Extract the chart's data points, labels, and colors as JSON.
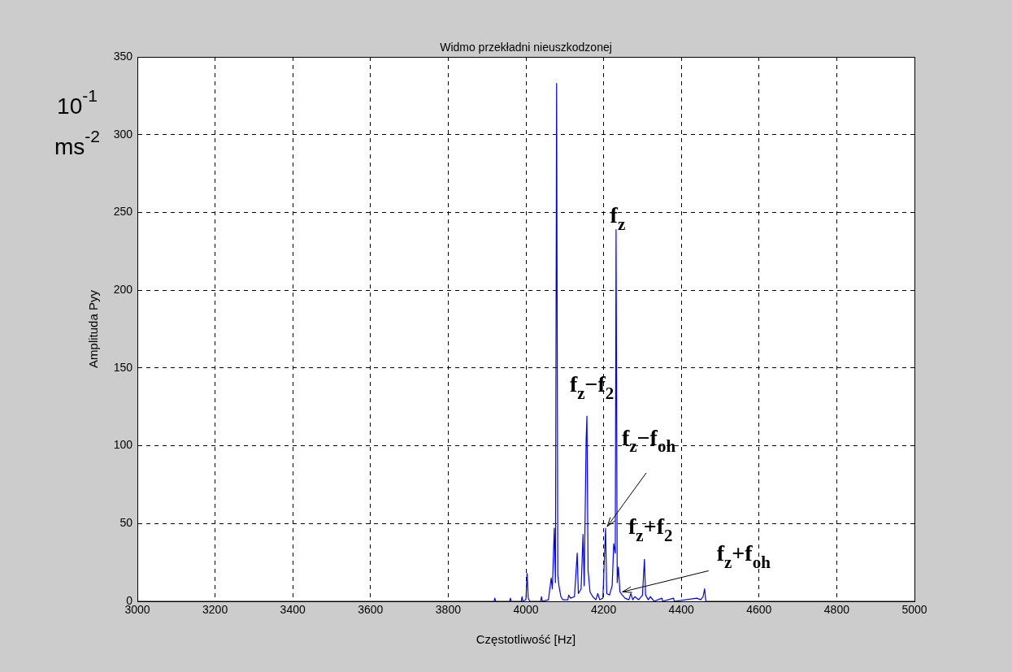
{
  "chart_data": {
    "type": "line",
    "title": "Widmo przekładni nieuszkodzonej",
    "xlabel": "Częstotliwość [Hz]",
    "ylabel": "Amplituda Pyy",
    "x": [
      3000,
      3918,
      3920,
      3922,
      3958,
      3960,
      3962,
      3988,
      3990,
      3992,
      4000,
      4003,
      4006,
      4010,
      4038,
      4040,
      4042,
      4058,
      4065,
      4068,
      4073,
      4076,
      4079,
      4082,
      4085,
      4090,
      4095,
      4108,
      4110,
      4115,
      4125,
      4132,
      4135,
      4142,
      4147,
      4150,
      4155,
      4157,
      4160,
      4165,
      4172,
      4180,
      4185,
      4190,
      4198,
      4205,
      4208,
      4215,
      4222,
      4226,
      4230,
      4232,
      4235,
      4238,
      4242,
      4248,
      4255,
      4265,
      4270,
      4275,
      4280,
      4290,
      4300,
      4305,
      4308,
      4315,
      4320,
      4330,
      4350,
      4352,
      4380,
      4382,
      4440,
      4450,
      4456,
      4460,
      4463,
      5000
    ],
    "series": [
      {
        "color": "#0000ff",
        "values": [
          0,
          0,
          2,
          0,
          0,
          2,
          0,
          0,
          3,
          0,
          1,
          18,
          2,
          0,
          0,
          3,
          0,
          1,
          15,
          8,
          47,
          12,
          333,
          17,
          10,
          3,
          1,
          1,
          4,
          2,
          3,
          31,
          5,
          8,
          43,
          10,
          104,
          119,
          20,
          6,
          3,
          1,
          5,
          1,
          2,
          47,
          5,
          4,
          10,
          37,
          31,
          239,
          12,
          22,
          6,
          4,
          2,
          1,
          5,
          1,
          3,
          1,
          4,
          27,
          4,
          1,
          3,
          0,
          2,
          0,
          2,
          0,
          2,
          1,
          3,
          8,
          0,
          0
        ]
      }
    ],
    "xlim": [
      3000,
      5000
    ],
    "xticks": [
      3000,
      3200,
      3400,
      3600,
      3800,
      4000,
      4200,
      4400,
      4600,
      4800,
      5000
    ],
    "ylim": [
      0,
      350
    ],
    "yticks": [
      0,
      50,
      100,
      150,
      200,
      250,
      300,
      350
    ],
    "grid": true,
    "legend": false,
    "marker": "none",
    "line_style": "solid",
    "annotations": [
      {
        "text": "f$_{z}$",
        "x": 4232,
        "y": 239
      },
      {
        "text": "f$_{z}$−f$_{2}$",
        "x": 4157,
        "y": 119
      },
      {
        "text": "f$_{z}$−f$_{oh}$",
        "x": 4205,
        "y": 47
      },
      {
        "text": "f$_{z}$+f$_{2}$",
        "x": 4226,
        "y": 37
      },
      {
        "text": "f$_{z}$+f$_{oh}$",
        "x": 4240,
        "y": 5
      },
      "10$^{-1}$",
      "ms$^{-2}$"
    ]
  }
}
